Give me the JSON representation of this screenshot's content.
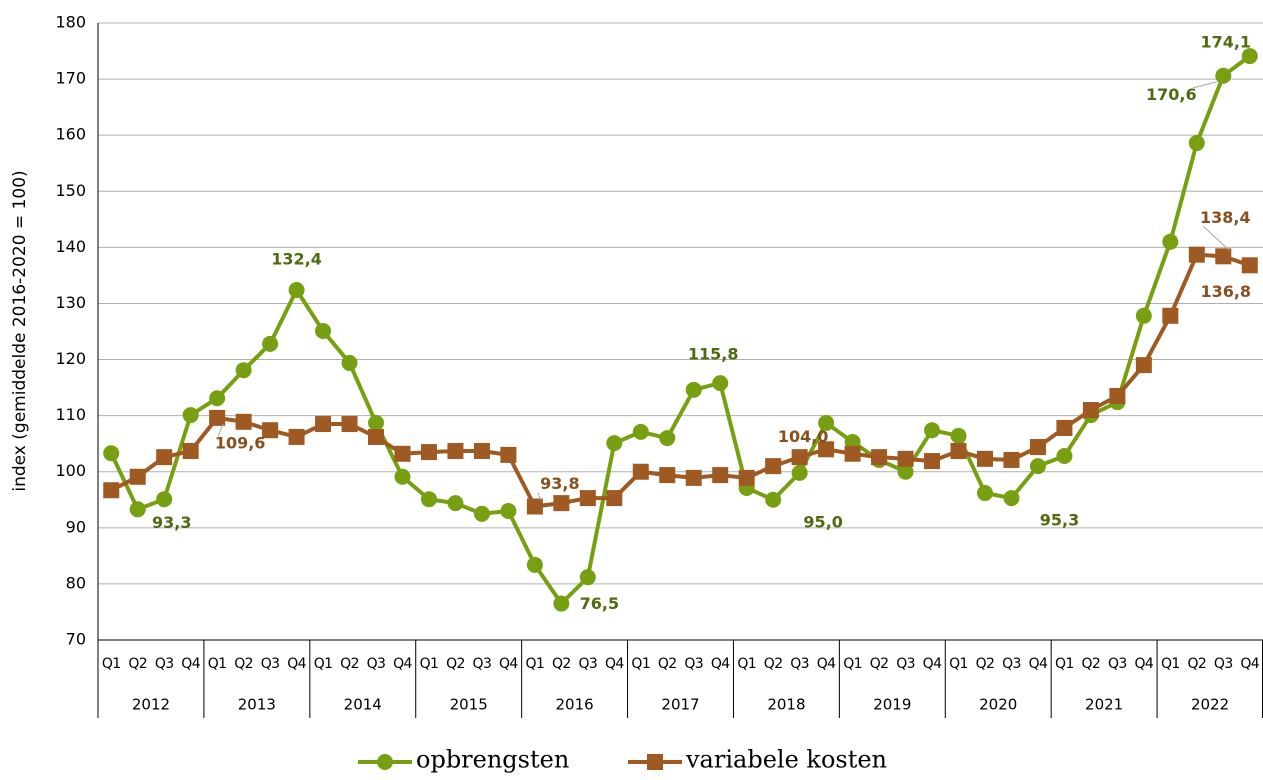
{
  "chart_data": {
    "type": "line",
    "y_label": "index (gemiddelde 2016-2020 = 100)",
    "categories": [
      "Q1",
      "Q2",
      "Q3",
      "Q4",
      "Q1",
      "Q2",
      "Q3",
      "Q4",
      "Q1",
      "Q2",
      "Q3",
      "Q4",
      "Q1",
      "Q2",
      "Q3",
      "Q4",
      "Q1",
      "Q2",
      "Q3",
      "Q4",
      "Q1",
      "Q2",
      "Q3",
      "Q4",
      "Q1",
      "Q2",
      "Q3",
      "Q4",
      "Q1",
      "Q2",
      "Q3",
      "Q4",
      "Q1",
      "Q2",
      "Q3",
      "Q4",
      "Q1",
      "Q2",
      "Q3",
      "Q4",
      "Q1",
      "Q2",
      "Q3",
      "Q4"
    ],
    "years": [
      "2012",
      "2013",
      "2014",
      "2015",
      "2016",
      "2017",
      "2018",
      "2019",
      "2020",
      "2021",
      "2022"
    ],
    "ylim": [
      70,
      180
    ],
    "yticks": [
      70,
      80,
      90,
      100,
      110,
      120,
      130,
      140,
      150,
      160,
      170,
      180
    ],
    "grid": true,
    "series": [
      {
        "name": "opbrengsten",
        "color": "#76a012",
        "label_color": "#4f6a10",
        "marker": "circle",
        "values": [
          103.3,
          93.3,
          95.1,
          110.1,
          113.1,
          118.1,
          122.8,
          132.4,
          125.1,
          119.4,
          108.7,
          99.1,
          95.1,
          94.4,
          92.5,
          93.0,
          83.4,
          76.5,
          81.2,
          105.1,
          107.1,
          106.0,
          114.6,
          115.8,
          97.1,
          95.0,
          99.8,
          108.7,
          105.3,
          102.1,
          100.0,
          107.4,
          106.4,
          96.2,
          95.3,
          101.0,
          102.8,
          110.1,
          112.4,
          127.8,
          141.0,
          158.6,
          170.6,
          174.1
        ],
        "value_labels": [
          null,
          "93,3",
          null,
          null,
          null,
          null,
          null,
          "132,4",
          null,
          null,
          null,
          null,
          null,
          null,
          null,
          null,
          null,
          "76,5",
          null,
          null,
          null,
          null,
          null,
          "115,8",
          null,
          "95,0",
          null,
          null,
          null,
          null,
          null,
          null,
          null,
          null,
          "95,3",
          null,
          null,
          null,
          null,
          null,
          null,
          null,
          "170,6",
          "174,1"
        ]
      },
      {
        "name": "variabele kosten",
        "color": "#9e5a22",
        "label_color": "#8a4f1f",
        "marker": "square",
        "values": [
          96.7,
          99.1,
          102.6,
          103.7,
          109.6,
          108.9,
          107.4,
          106.2,
          108.5,
          108.5,
          106.2,
          103.2,
          103.5,
          103.7,
          103.7,
          103.0,
          93.8,
          94.4,
          95.3,
          95.3,
          100.0,
          99.4,
          98.9,
          99.4,
          98.9,
          101.0,
          102.6,
          104.0,
          103.2,
          102.6,
          102.3,
          101.9,
          103.7,
          102.3,
          102.1,
          104.4,
          107.8,
          111.0,
          113.5,
          119.0,
          127.8,
          138.7,
          138.4,
          136.8
        ],
        "value_labels": [
          null,
          null,
          null,
          null,
          "109,6",
          null,
          null,
          null,
          null,
          null,
          null,
          null,
          null,
          null,
          null,
          null,
          "93,8",
          null,
          null,
          null,
          null,
          null,
          null,
          null,
          null,
          null,
          null,
          "104,0",
          null,
          null,
          null,
          null,
          null,
          null,
          null,
          null,
          null,
          null,
          null,
          null,
          null,
          null,
          "138,4",
          "136,8"
        ]
      }
    ]
  }
}
